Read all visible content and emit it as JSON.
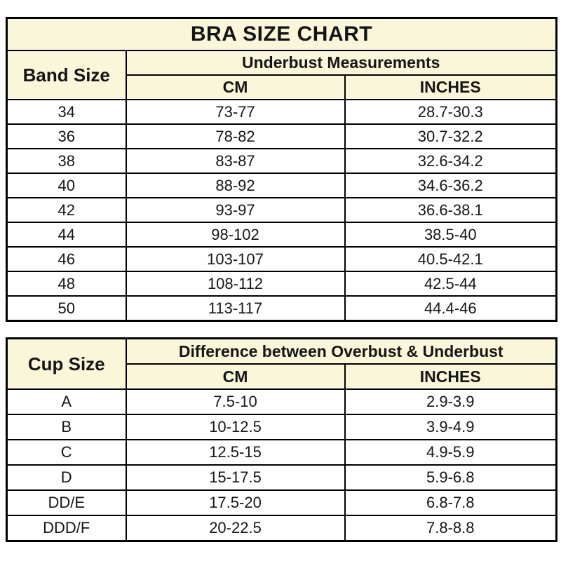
{
  "colors": {
    "header_background": "#faf6da",
    "row_background": "#ffffff",
    "border": "#000000",
    "text": "#151515"
  },
  "chart_data": [
    {
      "type": "table",
      "title": "BRA SIZE CHART",
      "corner_header": "Band Size",
      "group_header": "Underbust Measurements",
      "col_headers": [
        "CM",
        "INCHES"
      ],
      "rows": [
        [
          "34",
          "73-77",
          "28.7-30.3"
        ],
        [
          "36",
          "78-82",
          "30.7-32.2"
        ],
        [
          "38",
          "83-87",
          "32.6-34.2"
        ],
        [
          "40",
          "88-92",
          "34.6-36.2"
        ],
        [
          "42",
          "93-97",
          "36.6-38.1"
        ],
        [
          "44",
          "98-102",
          "38.5-40"
        ],
        [
          "46",
          "103-107",
          "40.5-42.1"
        ],
        [
          "48",
          "108-112",
          "42.5-44"
        ],
        [
          "50",
          "113-117",
          "44.4-46"
        ]
      ]
    },
    {
      "type": "table",
      "corner_header": "Cup Size",
      "group_header": "Difference between Overbust & Underbust",
      "col_headers": [
        "CM",
        "INCHES"
      ],
      "rows": [
        [
          "A",
          "7.5-10",
          "2.9-3.9"
        ],
        [
          "B",
          "10-12.5",
          "3.9-4.9"
        ],
        [
          "C",
          "12.5-15",
          "4.9-5.9"
        ],
        [
          "D",
          "15-17.5",
          "5.9-6.8"
        ],
        [
          "DD/E",
          "17.5-20",
          "6.8-7.8"
        ],
        [
          "DDD/F",
          "20-22.5",
          "7.8-8.8"
        ]
      ]
    }
  ]
}
